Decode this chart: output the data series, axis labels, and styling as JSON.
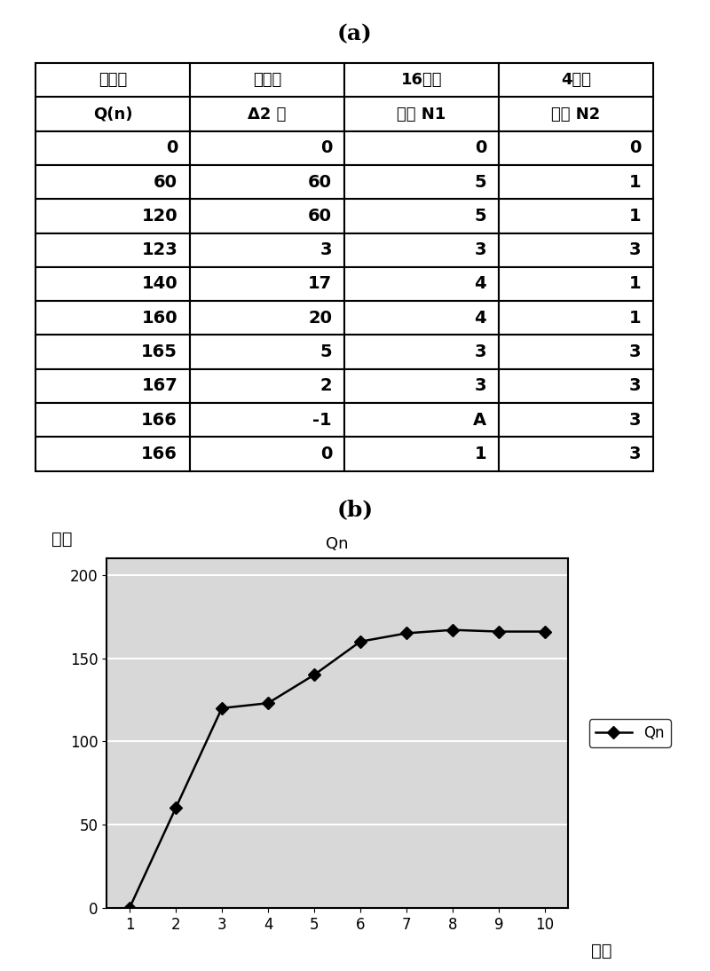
{
  "title_a": "(a)",
  "title_b": "(b)",
  "table_headers_row1": [
    "流量值",
    "差分值",
    "16分类",
    "4分类"
  ],
  "table_headers_row2": [
    "Q(n)",
    "Δ2 秒",
    "代码 N1",
    "代码 N2"
  ],
  "table_data": [
    [
      "0",
      "0",
      "0",
      "0"
    ],
    [
      "60",
      "60",
      "5",
      "1"
    ],
    [
      "120",
      "60",
      "5",
      "1"
    ],
    [
      "123",
      "3",
      "3",
      "3"
    ],
    [
      "140",
      "17",
      "4",
      "1"
    ],
    [
      "160",
      "20",
      "4",
      "1"
    ],
    [
      "165",
      "5",
      "3",
      "3"
    ],
    [
      "167",
      "2",
      "3",
      "3"
    ],
    [
      "166",
      "-1",
      "A",
      "3"
    ],
    [
      "166",
      "0",
      "1",
      "3"
    ]
  ],
  "graph_title": "Qn",
  "x_data": [
    1,
    2,
    3,
    4,
    5,
    6,
    7,
    8,
    9,
    10
  ],
  "y_data": [
    0,
    60,
    120,
    123,
    140,
    160,
    165,
    167,
    166,
    166
  ],
  "xlabel": "时间",
  "ylabel": "流量",
  "legend_label": "Qn",
  "y_ticks": [
    0,
    50,
    100,
    150,
    200
  ],
  "x_ticks": [
    1,
    2,
    3,
    4,
    5,
    6,
    7,
    8,
    9,
    10
  ],
  "bg_color": "#ffffff",
  "line_color": "#000000",
  "marker_color": "#000000",
  "chart_bg": "#d8d8d8",
  "grid_color": "#ffffff"
}
